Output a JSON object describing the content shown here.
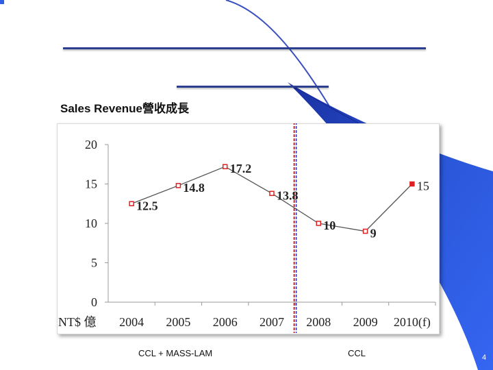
{
  "title": "Sales Revenue營收成長",
  "chart_data": {
    "type": "line",
    "categories": [
      "2004",
      "2005",
      "2006",
      "2007",
      "2008",
      "2009",
      "2010(f)"
    ],
    "values": [
      12.5,
      14.8,
      17.2,
      13.8,
      10,
      9,
      15
    ],
    "data_labels": [
      "12.5",
      "14.8",
      "17.2",
      "13.8",
      "10",
      "9",
      "15"
    ],
    "y_ticks": [
      "0",
      "5",
      "10",
      "15",
      "20"
    ],
    "ylim": [
      0,
      20
    ],
    "ylabel": "NT$ 億",
    "divider_after": "2007",
    "segments": [
      "CCL + MASS-LAM",
      "CCL"
    ],
    "colors": {
      "line": "#555555",
      "marker": "#e02020",
      "divider_red": "#cc2222",
      "divider_blue": "#2233aa"
    }
  },
  "page_number": "4",
  "colors": {
    "accent_blue": "#2f5fe8",
    "rule": "#2a3f8f"
  }
}
